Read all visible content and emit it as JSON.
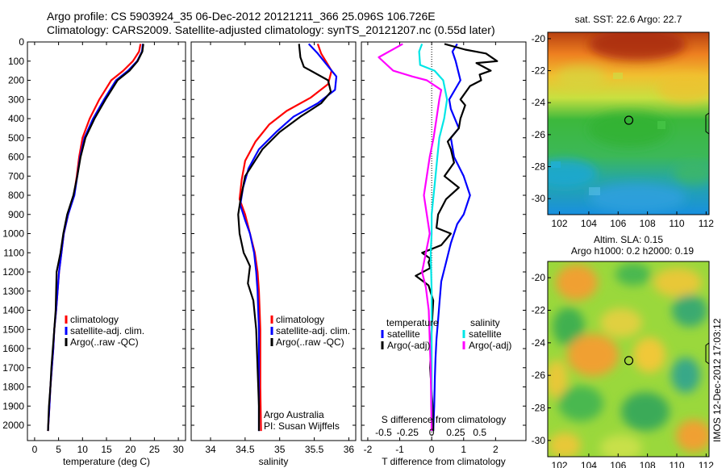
{
  "figure": {
    "title_line1": "Argo profile: CS 5903924_35 06-Dec-2012 20121211_366 25.096S 106.726E",
    "title_line2": "Climatology: CARS2009. Satellite-adjusted climatology: synTS_20121207.nc (0.55d later)",
    "side_stamp": "IMOS 12-Dec-2012 17:03:12",
    "credit_line1": "Argo Australia",
    "credit_line2": "PI: Susan Wijffels"
  },
  "colors": {
    "climatology": "#ff0000",
    "satellite_adj": "#0000ff",
    "argo": "#000000",
    "salinity_satellite": "#00e6e6",
    "salinity_argo": "#ff00ff"
  },
  "chart_data": [
    {
      "id": "temperature",
      "type": "line",
      "xlabel": "temperature (deg C)",
      "ylabel": "",
      "xlim": [
        -1.5,
        31.5
      ],
      "ylim": [
        2080,
        0
      ],
      "y_reversed": true,
      "xticks": [
        0,
        5,
        10,
        15,
        20,
        25,
        30
      ],
      "yticks": [
        0,
        100,
        200,
        300,
        400,
        500,
        600,
        700,
        800,
        900,
        1000,
        1100,
        1200,
        1300,
        1400,
        1500,
        1600,
        1700,
        1800,
        1900,
        2000
      ],
      "legend": [
        "climatology",
        "satellite-adj. clim.",
        "Argo(..raw -QC)"
      ],
      "series": [
        {
          "name": "climatology",
          "color": "#ff0000",
          "x": [
            22.1,
            21.8,
            20.5,
            18.5,
            16.0,
            13.5,
            11.5,
            10.0,
            9.3,
            8.8,
            8.2,
            7.0,
            6.1,
            5.6,
            5.1,
            4.8,
            4.5,
            4.1,
            3.9,
            3.6,
            3.3,
            3.1,
            2.8
          ],
          "y": [
            10,
            50,
            100,
            150,
            200,
            300,
            400,
            500,
            600,
            700,
            800,
            900,
            1000,
            1100,
            1200,
            1300,
            1400,
            1500,
            1600,
            1700,
            1800,
            1900,
            2030
          ]
        },
        {
          "name": "satellite-adj. clim.",
          "color": "#0000ff",
          "x": [
            22.6,
            22.4,
            21.4,
            19.5,
            17.0,
            14.5,
            12.2,
            10.4,
            9.5,
            8.9,
            8.3,
            7.0,
            6.1,
            5.6,
            5.1,
            4.8,
            4.5,
            4.1,
            3.9,
            3.6,
            3.3,
            3.1,
            2.8
          ],
          "y": [
            10,
            50,
            100,
            150,
            200,
            300,
            400,
            500,
            600,
            700,
            800,
            900,
            1000,
            1100,
            1200,
            1300,
            1400,
            1500,
            1600,
            1700,
            1800,
            1900,
            2030
          ]
        },
        {
          "name": "Argo(..raw -QC)",
          "color": "#000000",
          "x": [
            22.7,
            22.5,
            21.5,
            19.8,
            17.3,
            14.8,
            12.5,
            10.6,
            9.6,
            8.9,
            8.1,
            6.8,
            6.0,
            5.4,
            4.6,
            4.5,
            4.4,
            4.1,
            3.8,
            3.5,
            3.3,
            3.0,
            2.8
          ],
          "y": [
            10,
            50,
            100,
            150,
            200,
            300,
            400,
            500,
            600,
            700,
            800,
            900,
            1000,
            1100,
            1200,
            1300,
            1400,
            1500,
            1600,
            1700,
            1800,
            1900,
            2030
          ]
        }
      ]
    },
    {
      "id": "salinity",
      "type": "line",
      "xlabel": "salinity",
      "ylabel": "",
      "xlim": [
        33.72,
        36.1
      ],
      "ylim": [
        2080,
        0
      ],
      "y_reversed": true,
      "xticks": [
        34,
        34.5,
        35,
        35.5,
        36
      ],
      "legend": [
        "climatology",
        "satellite-adj. clim.",
        "Argo(..raw -QC)"
      ],
      "series": [
        {
          "name": "climatology",
          "color": "#ff0000",
          "x": [
            35.55,
            35.6,
            35.75,
            35.7,
            35.45,
            35.1,
            34.85,
            34.65,
            34.5,
            34.45,
            34.42,
            34.5,
            34.57,
            34.64,
            34.68,
            34.7,
            34.71,
            34.72,
            34.72,
            34.72,
            34.72,
            34.73
          ],
          "y": [
            10,
            60,
            150,
            220,
            290,
            360,
            430,
            520,
            620,
            720,
            820,
            900,
            1000,
            1100,
            1200,
            1300,
            1400,
            1500,
            1600,
            1700,
            1800,
            2030
          ]
        },
        {
          "name": "satellite-adj. clim.",
          "color": "#0000ff",
          "x": [
            35.42,
            35.55,
            35.82,
            35.8,
            35.55,
            35.2,
            34.95,
            34.7,
            34.55,
            34.47,
            34.43,
            34.5,
            34.57,
            34.63,
            34.66,
            34.68,
            34.69,
            34.7,
            34.7,
            34.7,
            34.7,
            34.7
          ],
          "y": [
            10,
            60,
            180,
            250,
            320,
            390,
            470,
            560,
            660,
            760,
            850,
            930,
            1000,
            1100,
            1200,
            1300,
            1400,
            1500,
            1600,
            1700,
            1800,
            2030
          ]
        },
        {
          "name": "Argo(..raw -QC)",
          "color": "#000000",
          "x": [
            35.28,
            35.3,
            35.35,
            35.7,
            35.74,
            35.6,
            35.3,
            35.0,
            34.75,
            34.5,
            34.43,
            34.4,
            34.42,
            34.48,
            34.52,
            34.57,
            34.54,
            34.62,
            34.66,
            34.68,
            34.7,
            34.7
          ],
          "y": [
            10,
            80,
            130,
            200,
            260,
            320,
            390,
            470,
            560,
            700,
            830,
            900,
            1000,
            1100,
            1130,
            1170,
            1260,
            1350,
            1500,
            1700,
            1900,
            2030
          ]
        }
      ]
    },
    {
      "id": "differences",
      "type": "line",
      "xlabel": "T difference from climatology",
      "top_label": "S difference from climatology",
      "ylabel": "",
      "xlim": [
        -2.2,
        2.95
      ],
      "top_xlim": [
        -0.73,
        0.98
      ],
      "ylim": [
        2080,
        0
      ],
      "y_reversed": true,
      "xticks": [
        -2,
        -1,
        0,
        1,
        2
      ],
      "top_xticks": [
        -0.5,
        -0.25,
        0,
        0.25,
        0.5
      ],
      "top_xtick_labels": [
        "-0.5",
        "-0.25",
        "0",
        "0.25",
        "0.5"
      ],
      "legend_temperature_title": "temperature",
      "legend_salinity_title": "salinity",
      "legend": [
        "satellite",
        "Argo(-adj)",
        "satellite",
        "Argo(-adj)"
      ],
      "series": [
        {
          "name": "temperature satellite",
          "color": "#0000ff",
          "axis": "T",
          "x": [
            0.8,
            0.65,
            0.75,
            0.9,
            0.55,
            0.6,
            0.85,
            0.6,
            0.7,
            1.0,
            1.2,
            1.0,
            0.8,
            0.6,
            0.45,
            0.3,
            0.25,
            0.2,
            0.15,
            0.12,
            0.1,
            0.08,
            0.05
          ],
          "y": [
            10,
            50,
            100,
            200,
            300,
            350,
            450,
            500,
            600,
            700,
            800,
            900,
            950,
            1050,
            1150,
            1250,
            1350,
            1450,
            1550,
            1650,
            1750,
            1900,
            2030
          ]
        },
        {
          "name": "temperature Argo(-adj)",
          "color": "#000000",
          "axis": "T",
          "x": [
            0.4,
            1.05,
            1.7,
            2.05,
            1.4,
            1.85,
            1.5,
            1.55,
            1.2,
            0.9,
            1.05,
            0.9,
            0.85,
            0.5,
            0.6,
            0.7,
            0.4,
            0.85,
            0.45,
            0.2,
            0.15,
            0.6,
            0.3,
            -0.3,
            -0.05,
            -0.1,
            -0.05,
            -0.5,
            -0.1,
            0.05,
            0.0,
            -0.05,
            0.03,
            0.05
          ],
          "y": [
            10,
            40,
            60,
            100,
            110,
            150,
            170,
            200,
            230,
            300,
            330,
            400,
            450,
            520,
            560,
            630,
            700,
            760,
            820,
            900,
            970,
            1000,
            1060,
            1100,
            1130,
            1150,
            1180,
            1220,
            1270,
            1350,
            1500,
            1700,
            1900,
            2030
          ]
        },
        {
          "name": "salinity satellite",
          "color": "#00e6e6",
          "axis": "S",
          "x": [
            -0.1,
            -0.13,
            -0.12,
            0.03,
            0.12,
            0.16,
            0.13,
            0.08,
            0.06,
            0.04,
            0.02,
            0.0,
            0.0,
            -0.01,
            0.0,
            0.0,
            0.0
          ],
          "y": [
            10,
            50,
            120,
            150,
            200,
            300,
            400,
            500,
            600,
            700,
            800,
            900,
            1000,
            1100,
            1300,
            1600,
            2030
          ]
        },
        {
          "name": "salinity Argo(-adj)",
          "color": "#ff00ff",
          "axis": "S",
          "x": [
            -0.3,
            -0.55,
            -0.4,
            -0.2,
            -0.05,
            0.1,
            0.08,
            0.05,
            0.02,
            -0.02,
            -0.05,
            -0.08,
            -0.05,
            -0.02,
            -0.1,
            -0.06,
            -0.03,
            -0.01,
            0.0
          ],
          "y": [
            10,
            80,
            150,
            180,
            200,
            250,
            300,
            400,
            500,
            600,
            700,
            800,
            900,
            1000,
            1200,
            1280,
            1400,
            1700,
            2030
          ]
        }
      ]
    },
    {
      "id": "sst_map",
      "type": "heatmap",
      "title": "sat. SST: 22.6  Argo: 22.7",
      "xlim": [
        101.2,
        112.2
      ],
      "ylim": [
        -31.0,
        -19.6
      ],
      "xticks": [
        102,
        104,
        106,
        108,
        110,
        112
      ],
      "yticks": [
        -20,
        -22,
        -24,
        -26,
        -28,
        -30
      ],
      "marker": {
        "lon": 106.726,
        "lat": -25.096
      }
    },
    {
      "id": "sla_map",
      "type": "heatmap",
      "title": "Altim. SLA: 0.15",
      "subtitle": "Argo h1000: 0.2  h2000: 0.19",
      "xlim": [
        101.2,
        112.2
      ],
      "ylim": [
        -31.0,
        -19.0
      ],
      "xticks": [
        102,
        104,
        106,
        108,
        110,
        112
      ],
      "yticks": [
        -20,
        -22,
        -24,
        -26,
        -28,
        -30
      ],
      "marker": {
        "lon": 106.726,
        "lat": -25.096
      }
    }
  ]
}
